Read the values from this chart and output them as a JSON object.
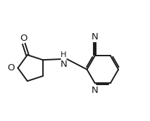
{
  "background_color": "#ffffff",
  "line_color": "#1a1a1a",
  "line_width": 1.4,
  "font_size": 9.5,
  "figsize": [
    2.13,
    1.72
  ],
  "dpi": 100,
  "xlim": [
    0,
    10
  ],
  "ylim": [
    0,
    8.1
  ]
}
